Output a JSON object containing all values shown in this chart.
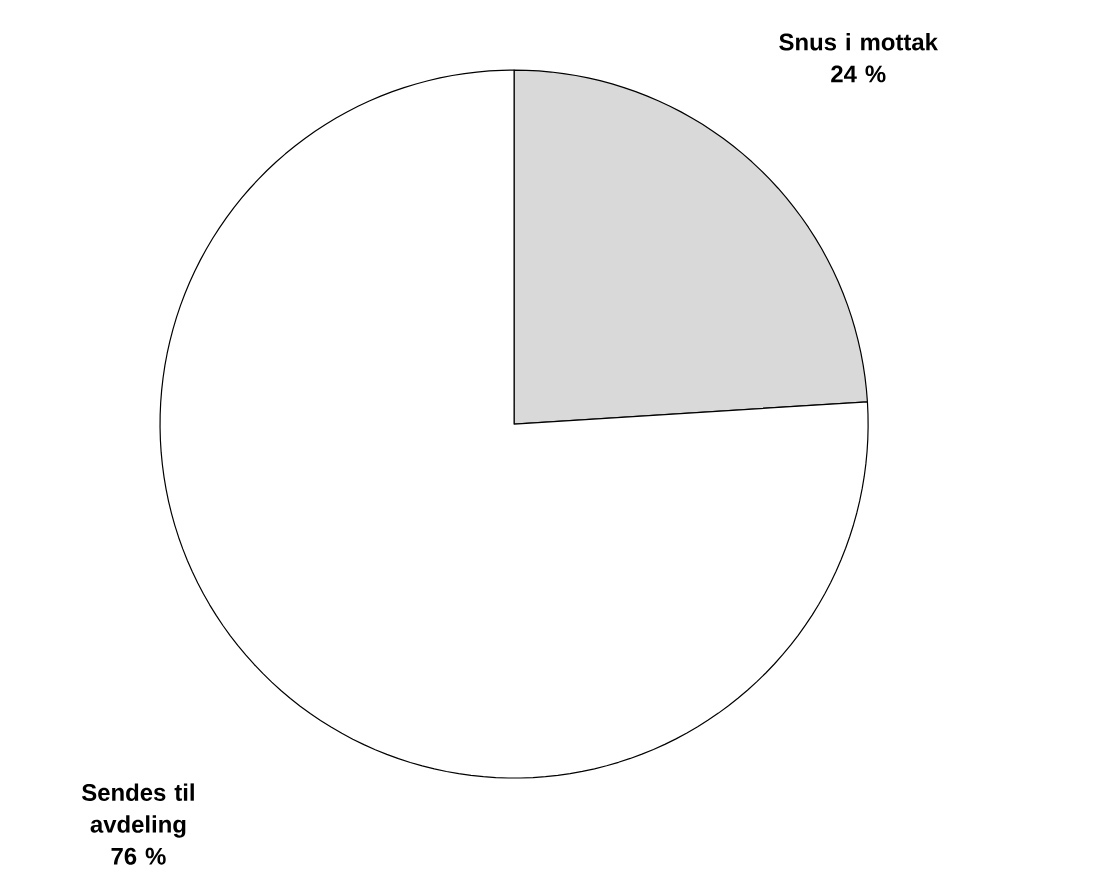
{
  "chart_data": {
    "type": "pie",
    "categories": [
      "Snus i mottak",
      "Sendes til avdeling"
    ],
    "values": [
      24,
      76
    ],
    "colors": [
      "#d9d9d9",
      "#ffffff"
    ],
    "value_labels": [
      "24 %",
      "76 %"
    ]
  }
}
